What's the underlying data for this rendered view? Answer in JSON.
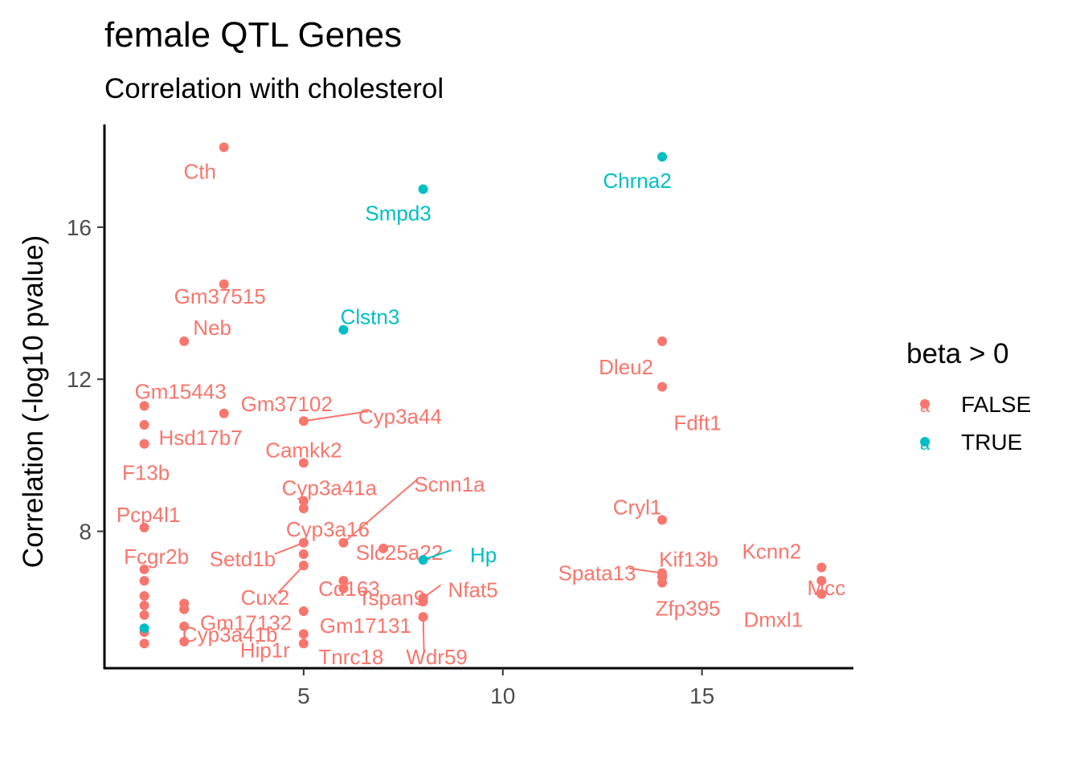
{
  "chart_data": {
    "type": "scatter",
    "title": "female QTL Genes",
    "subtitle": "Correlation with cholesterol",
    "xlabel": "",
    "ylabel": "Correlation (-log10 pvalue)",
    "xlim": [
      0.0,
      18.8
    ],
    "ylim": [
      4.4,
      18.7
    ],
    "x_ticks": [
      5,
      10,
      15
    ],
    "y_ticks": [
      8,
      12,
      16
    ],
    "grid": false,
    "legend": {
      "title": "beta > 0",
      "position": "right",
      "entries": [
        {
          "label": "FALSE",
          "color": "#F8766D",
          "key": "a"
        },
        {
          "label": "TRUE",
          "color": "#00BFC4",
          "key": "a"
        }
      ]
    },
    "series": [
      {
        "name": "FALSE",
        "color": "#F8766D",
        "points": [
          {
            "x": 3,
            "y": 18.1,
            "label": "Cth"
          },
          {
            "x": 3,
            "y": 14.5,
            "label": "Gm37515"
          },
          {
            "x": 2,
            "y": 13.0,
            "label": "Neb"
          },
          {
            "x": 1,
            "y": 11.3,
            "label": "Gm15443"
          },
          {
            "x": 3,
            "y": 11.1,
            "label": "Gm37102"
          },
          {
            "x": 5,
            "y": 10.9,
            "label": "Cyp3a44"
          },
          {
            "x": 1,
            "y": 10.8,
            "label": "Hsd17b7"
          },
          {
            "x": 1,
            "y": 10.3,
            "label": "F13b"
          },
          {
            "x": 5,
            "y": 9.8,
            "label": "Camkk2"
          },
          {
            "x": 5,
            "y": 8.8,
            "label": "Cyp3a41a"
          },
          {
            "x": 5,
            "y": 8.6,
            "label": ""
          },
          {
            "x": 1,
            "y": 8.1,
            "label": "Pcp4l1"
          },
          {
            "x": 5,
            "y": 7.7,
            "label": "Setd1b"
          },
          {
            "x": 6,
            "y": 7.7,
            "label": "Scnn1a"
          },
          {
            "x": 7,
            "y": 7.55,
            "label": "Slc25a22"
          },
          {
            "x": 5,
            "y": 7.4,
            "label": "Cyp3a16"
          },
          {
            "x": 5,
            "y": 7.1,
            "label": "Cux2"
          },
          {
            "x": 1,
            "y": 7.0,
            "label": "Fcgr2b"
          },
          {
            "x": 1,
            "y": 6.7,
            "label": ""
          },
          {
            "x": 6,
            "y": 6.7,
            "label": "Cd163"
          },
          {
            "x": 6,
            "y": 6.5,
            "label": "Tspan9"
          },
          {
            "x": 1,
            "y": 6.3,
            "label": ""
          },
          {
            "x": 8,
            "y": 6.25,
            "label": "Nfat5"
          },
          {
            "x": 8,
            "y": 6.15,
            "label": ""
          },
          {
            "x": 2,
            "y": 6.1,
            "label": "Gm17132"
          },
          {
            "x": 1,
            "y": 6.05,
            "label": ""
          },
          {
            "x": 2,
            "y": 5.95,
            "label": ""
          },
          {
            "x": 5,
            "y": 5.9,
            "label": "Gm17131"
          },
          {
            "x": 1,
            "y": 5.8,
            "label": ""
          },
          {
            "x": 8,
            "y": 5.75,
            "label": "Wdr59"
          },
          {
            "x": 2,
            "y": 5.5,
            "label": "Cyp3a41b"
          },
          {
            "x": 1,
            "y": 5.35,
            "label": ""
          },
          {
            "x": 5,
            "y": 5.3,
            "label": "Hip1r"
          },
          {
            "x": 2,
            "y": 5.1,
            "label": ""
          },
          {
            "x": 1,
            "y": 5.05,
            "label": ""
          },
          {
            "x": 5,
            "y": 5.05,
            "label": "Tnrc18"
          },
          {
            "x": 14,
            "y": 13.0,
            "label": "Dleu2"
          },
          {
            "x": 14,
            "y": 11.8,
            "label": "Fdft1"
          },
          {
            "x": 14,
            "y": 8.3,
            "label": "Cryl1"
          },
          {
            "x": 14,
            "y": 6.9,
            "label": "Spata13"
          },
          {
            "x": 14,
            "y": 6.8,
            "label": "Kif13b"
          },
          {
            "x": 14,
            "y": 6.65,
            "label": "Zfp395"
          },
          {
            "x": 18,
            "y": 7.05,
            "label": "Kcnn2"
          },
          {
            "x": 18,
            "y": 6.7,
            "label": "Mcc"
          },
          {
            "x": 18,
            "y": 6.35,
            "label": "Dmxl1"
          }
        ]
      },
      {
        "name": "TRUE",
        "color": "#00BFC4",
        "points": [
          {
            "x": 14,
            "y": 17.85,
            "label": "Chrna2"
          },
          {
            "x": 8,
            "y": 17.0,
            "label": "Smpd3"
          },
          {
            "x": 6,
            "y": 13.3,
            "label": "Clstn3"
          },
          {
            "x": 8,
            "y": 7.25,
            "label": "Hp"
          },
          {
            "x": 1,
            "y": 5.45,
            "label": ""
          }
        ]
      }
    ]
  }
}
